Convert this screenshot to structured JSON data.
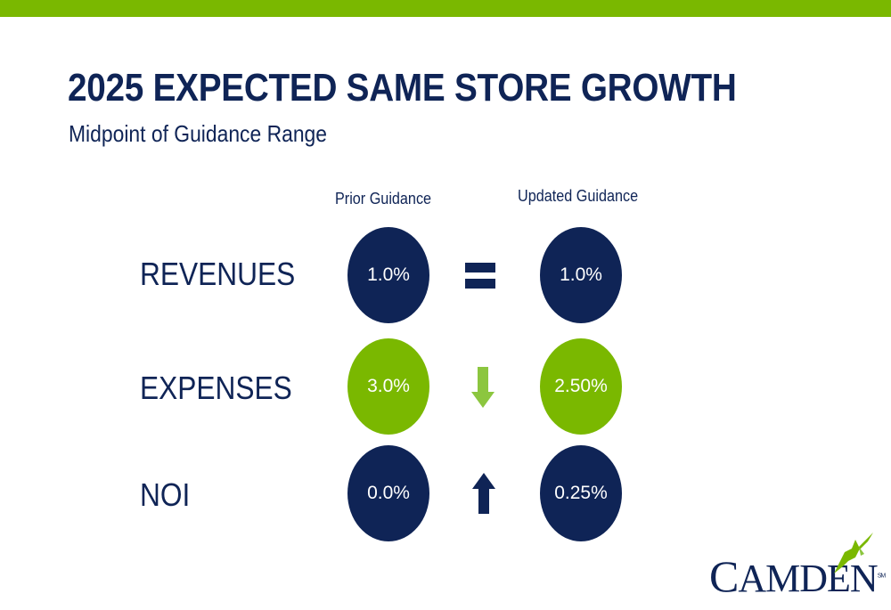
{
  "header": {
    "title": "2025 EXPECTED SAME STORE GROWTH",
    "subtitle": "Midpoint of Guidance Range"
  },
  "columns": {
    "prior": "Prior Guidance",
    "updated": "Updated Guidance"
  },
  "rows": [
    {
      "label": "REVENUES",
      "prior": "1.0%",
      "updated": "1.0%",
      "change": "equal",
      "color": "#0f2456"
    },
    {
      "label": "EXPENSES",
      "prior": "3.0%",
      "updated": "2.50%",
      "change": "down",
      "color": "#7ab800"
    },
    {
      "label": "NOI",
      "prior": "0.0%",
      "updated": "0.25%",
      "change": "up",
      "color": "#0f2456"
    }
  ],
  "icons": {
    "revenues_change": "equals-icon",
    "expenses_change": "down-arrow-icon",
    "noi_change": "up-arrow-icon",
    "logo_mark": "hummingbird-icon"
  },
  "logo": {
    "first": "C",
    "rest": "AMDEN",
    "mark": "SM"
  },
  "colors": {
    "navy": "#0f2456",
    "green": "#7ab800",
    "light_green": "#8cc63f"
  }
}
